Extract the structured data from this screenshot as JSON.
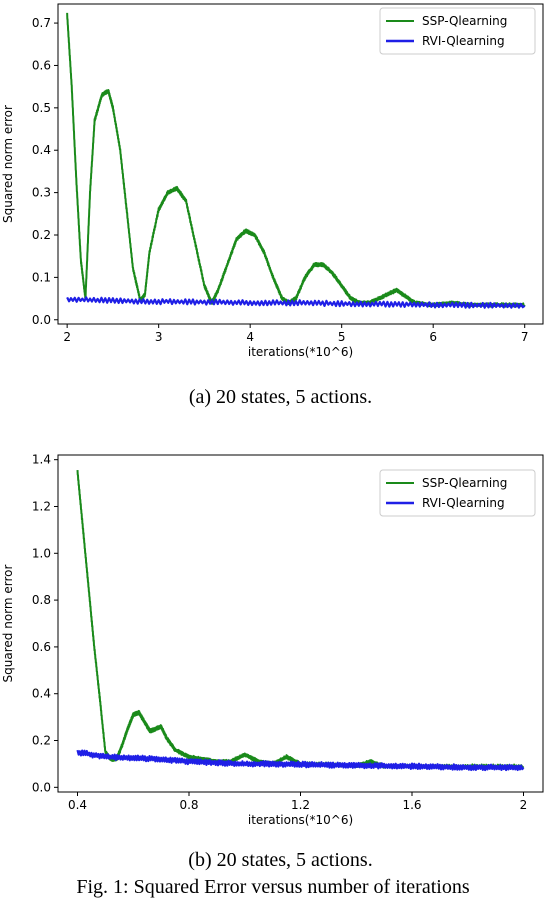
{
  "chart_data": [
    {
      "type": "line",
      "caption": "(a) 20 states, 5 actions.",
      "xlabel": "iterations(*10^6)",
      "ylabel": "Squared norm error",
      "xlim": [
        1.9,
        7.2
      ],
      "ylim": [
        -0.01,
        0.745
      ],
      "xticks": [
        2,
        3,
        4,
        5,
        6,
        7
      ],
      "xtick_labels": [
        "2",
        "3",
        "4",
        "5",
        "6",
        "7"
      ],
      "yticks": [
        0.0,
        0.1,
        0.2,
        0.3,
        0.4,
        0.5,
        0.6,
        0.7
      ],
      "ytick_labels": [
        "0.0",
        "0.1",
        "0.2",
        "0.3",
        "0.4",
        "0.5",
        "0.6",
        "0.7"
      ],
      "grid": false,
      "legend_position": "top-right",
      "series": [
        {
          "name": "SSP-Qlearning",
          "color": "#1a8a1a",
          "x": [
            2.0,
            2.05,
            2.1,
            2.15,
            2.2,
            2.25,
            2.3,
            2.38,
            2.45,
            2.5,
            2.58,
            2.65,
            2.72,
            2.8,
            2.85,
            2.9,
            3.0,
            3.1,
            3.2,
            3.3,
            3.4,
            3.5,
            3.58,
            3.65,
            3.75,
            3.85,
            3.95,
            4.05,
            4.15,
            4.25,
            4.35,
            4.42,
            4.5,
            4.6,
            4.7,
            4.8,
            4.9,
            5.0,
            5.1,
            5.2,
            5.3,
            5.5,
            5.6,
            5.7,
            5.8,
            6.0,
            6.2,
            6.4,
            6.6,
            6.8,
            7.0
          ],
          "y": [
            0.72,
            0.55,
            0.33,
            0.14,
            0.05,
            0.3,
            0.47,
            0.53,
            0.54,
            0.5,
            0.4,
            0.26,
            0.12,
            0.045,
            0.06,
            0.16,
            0.26,
            0.3,
            0.31,
            0.28,
            0.18,
            0.08,
            0.04,
            0.07,
            0.13,
            0.19,
            0.21,
            0.2,
            0.16,
            0.1,
            0.05,
            0.04,
            0.05,
            0.1,
            0.13,
            0.13,
            0.11,
            0.08,
            0.05,
            0.04,
            0.04,
            0.06,
            0.07,
            0.055,
            0.04,
            0.035,
            0.04,
            0.035,
            0.035,
            0.035,
            0.035
          ]
        },
        {
          "name": "RVI-Qlearning",
          "color": "#1f1fe6",
          "x": [
            2.0,
            2.5,
            3.0,
            3.5,
            4.0,
            4.5,
            5.0,
            5.5,
            6.0,
            6.5,
            7.0
          ],
          "y": [
            0.048,
            0.045,
            0.043,
            0.042,
            0.04,
            0.04,
            0.038,
            0.037,
            0.035,
            0.034,
            0.033
          ]
        }
      ]
    },
    {
      "type": "line",
      "caption": "(b) 20 states, 5 actions.",
      "xlabel": "iterations(*10^6)",
      "ylabel": "Squared norm error",
      "xlim": [
        0.33,
        2.07
      ],
      "ylim": [
        -0.02,
        1.42
      ],
      "xticks": [
        0.4,
        0.8,
        1.2,
        1.6,
        2.0
      ],
      "xtick_labels": [
        "0.4",
        "0.8",
        "1.2",
        "1.6",
        "2"
      ],
      "yticks": [
        0.0,
        0.2,
        0.4,
        0.6,
        0.8,
        1.0,
        1.2,
        1.4
      ],
      "ytick_labels": [
        "0.0",
        "0.2",
        "0.4",
        "0.6",
        "0.8",
        "1.0",
        "1.2",
        "1.4"
      ],
      "grid": false,
      "legend_position": "top-right",
      "series": [
        {
          "name": "SSP-Qlearning",
          "color": "#1a8a1a",
          "x": [
            0.4,
            0.42,
            0.44,
            0.46,
            0.48,
            0.5,
            0.52,
            0.54,
            0.56,
            0.58,
            0.6,
            0.62,
            0.64,
            0.66,
            0.68,
            0.7,
            0.72,
            0.75,
            0.8,
            0.85,
            0.9,
            0.95,
            1.0,
            1.05,
            1.1,
            1.15,
            1.2,
            1.3,
            1.4,
            1.45,
            1.5,
            1.6,
            1.7,
            1.8,
            1.9,
            2.0
          ],
          "y": [
            1.35,
            1.1,
            0.85,
            0.6,
            0.38,
            0.15,
            0.12,
            0.12,
            0.18,
            0.25,
            0.31,
            0.32,
            0.28,
            0.24,
            0.25,
            0.26,
            0.21,
            0.16,
            0.13,
            0.12,
            0.11,
            0.11,
            0.14,
            0.11,
            0.1,
            0.13,
            0.1,
            0.1,
            0.09,
            0.11,
            0.09,
            0.09,
            0.09,
            0.09,
            0.09,
            0.09
          ]
        },
        {
          "name": "RVI-Qlearning",
          "color": "#1f1fe6",
          "x": [
            0.4,
            0.5,
            0.6,
            0.7,
            0.8,
            0.9,
            1.0,
            1.1,
            1.2,
            1.3,
            1.4,
            1.5,
            1.6,
            1.7,
            1.8,
            1.9,
            2.0
          ],
          "y": [
            0.15,
            0.13,
            0.125,
            0.12,
            0.11,
            0.105,
            0.1,
            0.1,
            0.098,
            0.095,
            0.093,
            0.092,
            0.09,
            0.088,
            0.085,
            0.085,
            0.085
          ]
        }
      ]
    }
  ],
  "footer_text": "Fig. 1: Squared Error versus number of iterations"
}
